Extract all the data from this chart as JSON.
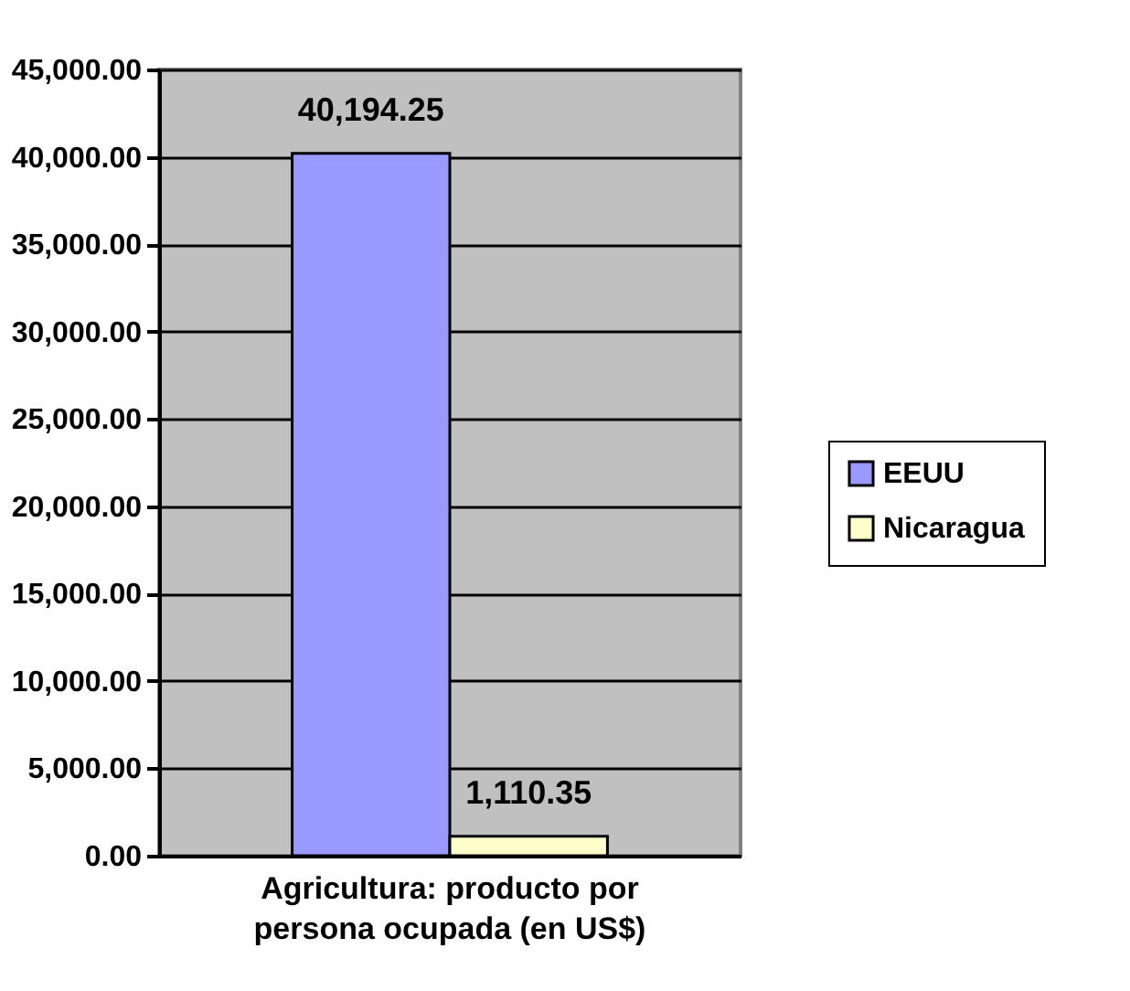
{
  "chart_data": {
    "type": "bar",
    "categories": [
      "Agricultura: producto por persona ocupada (en US$)"
    ],
    "series": [
      {
        "name": "EEUU",
        "color": "#9999ff",
        "values": [
          40194.25
        ],
        "value_labels": [
          "40,194.25"
        ]
      },
      {
        "name": "Nicaragua",
        "color": "#ffffcc",
        "values": [
          1110.35
        ],
        "value_labels": [
          "1,110.35"
        ]
      }
    ],
    "ylim": [
      0,
      45000
    ],
    "yticks": [
      {
        "value": 0,
        "label": "0.00"
      },
      {
        "value": 5000,
        "label": "5,000.00"
      },
      {
        "value": 10000,
        "label": "10,000.00"
      },
      {
        "value": 15000,
        "label": "15,000.00"
      },
      {
        "value": 20000,
        "label": "20,000.00"
      },
      {
        "value": 25000,
        "label": "25,000.00"
      },
      {
        "value": 30000,
        "label": "30,000.00"
      },
      {
        "value": 35000,
        "label": "35,000.00"
      },
      {
        "value": 40000,
        "label": "40,000.00"
      },
      {
        "value": 45000,
        "label": "45,000.00"
      }
    ],
    "grid": "y",
    "legend": "right"
  }
}
